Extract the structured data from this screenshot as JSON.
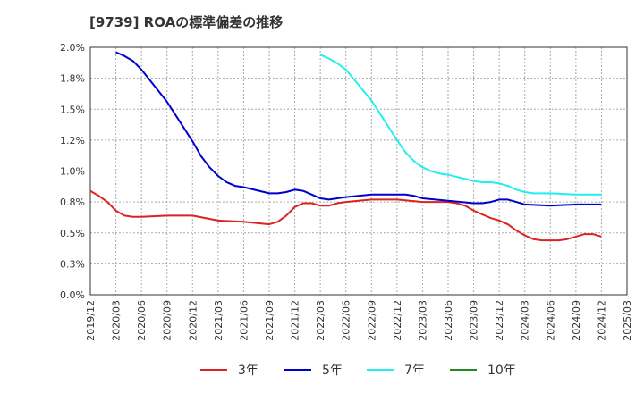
{
  "chart_data": {
    "type": "line",
    "title": "[9739]  ROAの標準偏差の推移",
    "xlabel": "",
    "ylabel": "",
    "x_ticks": [
      "2019/12",
      "2020/03",
      "2020/06",
      "2020/09",
      "2020/12",
      "2021/03",
      "2021/06",
      "2021/09",
      "2021/12",
      "2022/03",
      "2022/06",
      "2022/09",
      "2022/12",
      "2023/03",
      "2023/06",
      "2023/09",
      "2023/12",
      "2024/03",
      "2024/06",
      "2024/09",
      "2024/12",
      "2025/03"
    ],
    "y_ticks": [
      "0.0%",
      "0.3%",
      "0.5%",
      "0.8%",
      "1.0%",
      "1.2%",
      "1.5%",
      "1.8%",
      "2.0%"
    ],
    "ylim": [
      0,
      2.0
    ],
    "grid": true,
    "legend_position": "bottom",
    "series": [
      {
        "name": "3年",
        "color": "#dd2222",
        "x": [
          "2019/12",
          "2020/01",
          "2020/02",
          "2020/03",
          "2020/04",
          "2020/05",
          "2020/06",
          "2020/09",
          "2020/12",
          "2021/03",
          "2021/06",
          "2021/09",
          "2021/10",
          "2021/11",
          "2021/12",
          "2022/01",
          "2022/02",
          "2022/03",
          "2022/04",
          "2022/05",
          "2022/06",
          "2022/09",
          "2022/12",
          "2023/03",
          "2023/06",
          "2023/07",
          "2023/08",
          "2023/09",
          "2023/10",
          "2023/11",
          "2023/12",
          "2024/01",
          "2024/02",
          "2024/03",
          "2024/04",
          "2024/05",
          "2024/06",
          "2024/07",
          "2024/08",
          "2024/09",
          "2024/10",
          "2024/11",
          "2024/12"
        ],
        "values": [
          0.84,
          0.8,
          0.75,
          0.68,
          0.64,
          0.63,
          0.63,
          0.64,
          0.64,
          0.6,
          0.59,
          0.57,
          0.59,
          0.64,
          0.71,
          0.74,
          0.74,
          0.72,
          0.72,
          0.74,
          0.75,
          0.77,
          0.77,
          0.75,
          0.75,
          0.74,
          0.72,
          0.68,
          0.65,
          0.62,
          0.6,
          0.57,
          0.52,
          0.48,
          0.45,
          0.44,
          0.44,
          0.44,
          0.45,
          0.47,
          0.49,
          0.49,
          0.47
        ]
      },
      {
        "name": "5年",
        "color": "#0000cc",
        "x": [
          "2020/03",
          "2020/04",
          "2020/05",
          "2020/06",
          "2020/09",
          "2020/12",
          "2021/01",
          "2021/02",
          "2021/03",
          "2021/04",
          "2021/05",
          "2021/06",
          "2021/09",
          "2021/10",
          "2021/11",
          "2021/12",
          "2022/01",
          "2022/02",
          "2022/03",
          "2022/04",
          "2022/05",
          "2022/06",
          "2022/09",
          "2022/12",
          "2023/01",
          "2023/02",
          "2023/03",
          "2023/06",
          "2023/09",
          "2023/10",
          "2023/11",
          "2023/12",
          "2024/01",
          "2024/02",
          "2024/03",
          "2024/06",
          "2024/09",
          "2024/12"
        ],
        "values": [
          1.96,
          1.93,
          1.89,
          1.82,
          1.56,
          1.24,
          1.12,
          1.03,
          0.96,
          0.91,
          0.88,
          0.87,
          0.82,
          0.82,
          0.83,
          0.85,
          0.84,
          0.81,
          0.78,
          0.77,
          0.78,
          0.79,
          0.81,
          0.81,
          0.81,
          0.8,
          0.78,
          0.76,
          0.74,
          0.74,
          0.75,
          0.77,
          0.77,
          0.75,
          0.73,
          0.72,
          0.73,
          0.73
        ]
      },
      {
        "name": "7年",
        "color": "#22eeee",
        "x": [
          "2022/03",
          "2022/04",
          "2022/05",
          "2022/06",
          "2022/09",
          "2022/12",
          "2023/01",
          "2023/02",
          "2023/03",
          "2023/04",
          "2023/05",
          "2023/06",
          "2023/09",
          "2023/10",
          "2023/11",
          "2023/12",
          "2024/01",
          "2024/02",
          "2024/03",
          "2024/04",
          "2024/05",
          "2024/06",
          "2024/09",
          "2024/12"
        ],
        "values": [
          1.94,
          1.91,
          1.87,
          1.82,
          1.57,
          1.25,
          1.15,
          1.08,
          1.03,
          1.0,
          0.98,
          0.97,
          0.92,
          0.91,
          0.91,
          0.9,
          0.88,
          0.85,
          0.83,
          0.82,
          0.82,
          0.82,
          0.81,
          0.81
        ]
      },
      {
        "name": "10年",
        "color": "#228822",
        "x": [],
        "values": []
      }
    ]
  }
}
